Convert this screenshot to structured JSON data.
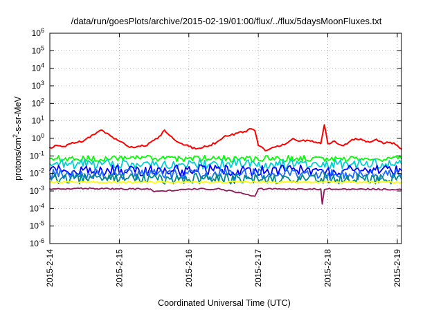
{
  "chart_data": {
    "type": "line",
    "title": "/data/run/goesPlots/archive/2015-02-19/01:00/flux/../flux/5daysMoonFluxes.txt",
    "xlabel": "Coordinated Universal Time (UTC)",
    "ylabel_parts": {
      "base": "protons/cm",
      "sup": "2",
      "rest": "-s-sr-MeV"
    },
    "yscale": "log",
    "ylim_exponents": [
      -6,
      6
    ],
    "yticks": [
      {
        "base": "10",
        "exp": "6"
      },
      {
        "base": "10",
        "exp": "5"
      },
      {
        "base": "10",
        "exp": "4"
      },
      {
        "base": "10",
        "exp": "3"
      },
      {
        "base": "10",
        "exp": "2"
      },
      {
        "base": "10",
        "exp": "1"
      },
      {
        "base": "10",
        "exp": "0"
      },
      {
        "base": "10",
        "exp": "-1"
      },
      {
        "base": "10",
        "exp": "-2"
      },
      {
        "base": "10",
        "exp": "-3"
      },
      {
        "base": "10",
        "exp": "-4"
      },
      {
        "base": "10",
        "exp": "-5"
      },
      {
        "base": "10",
        "exp": "-6"
      }
    ],
    "xlim_days": [
      0,
      5.06
    ],
    "xticks": [
      "2015-2-14",
      "2015-2-15",
      "2015-2-16",
      "2015-2-17",
      "2015-2-18",
      "2015-2-19"
    ],
    "grid": true,
    "series": [
      {
        "color": "#ff0000",
        "x": [
          0,
          0.1,
          0.2,
          0.3,
          0.4,
          0.5,
          0.6,
          0.7,
          0.75,
          0.8,
          0.9,
          1.0,
          1.1,
          1.2,
          1.3,
          1.4,
          1.5,
          1.6,
          1.65,
          1.7,
          1.8,
          1.9,
          2.0,
          2.1,
          2.2,
          2.3,
          2.4,
          2.5,
          2.6,
          2.7,
          2.8,
          2.9,
          2.95,
          3.0,
          3.1,
          3.2,
          3.3,
          3.4,
          3.5,
          3.6,
          3.7,
          3.8,
          3.9,
          3.95,
          4.0,
          4.1,
          4.2,
          4.3,
          4.4,
          4.5,
          4.6,
          4.7,
          4.8,
          4.9,
          5.0,
          5.06
        ],
        "y": [
          0.3,
          0.4,
          0.35,
          0.5,
          0.6,
          0.8,
          1.5,
          2.5,
          3.0,
          2.0,
          1.2,
          0.7,
          0.4,
          0.3,
          0.35,
          0.4,
          0.8,
          1.5,
          3.0,
          1.8,
          0.8,
          0.5,
          0.35,
          0.25,
          0.3,
          0.4,
          0.6,
          1.2,
          1.5,
          2.0,
          2.5,
          3.5,
          2.8,
          0.4,
          0.2,
          0.3,
          0.35,
          0.5,
          1.0,
          0.7,
          0.8,
          0.6,
          0.5,
          6.0,
          0.5,
          0.7,
          0.4,
          0.6,
          1.0,
          0.8,
          0.6,
          0.9,
          0.5,
          0.6,
          0.4,
          0.25
        ]
      },
      {
        "color": "#00ff00",
        "x": [
          0,
          5.06
        ],
        "y": [
          0.07,
          0.07
        ]
      },
      {
        "color": "#00cfcf",
        "x": [
          0,
          5.06
        ],
        "y": [
          0.035,
          0.035
        ]
      },
      {
        "color": "#0000ff",
        "x": [
          0,
          5.06
        ],
        "y": [
          0.015,
          0.015
        ]
      },
      {
        "color": "#1a6bff",
        "x": [
          0,
          5.06
        ],
        "y": [
          0.009,
          0.009
        ]
      },
      {
        "color": "#008b8b",
        "x": [
          0,
          5.06
        ],
        "y": [
          0.005,
          0.005
        ]
      },
      {
        "color": "#ffff00",
        "x": [
          0,
          5.06
        ],
        "y": [
          0.0032,
          0.0032
        ]
      },
      {
        "color": "#8b1a5a",
        "x": [
          0,
          0.5,
          1.0,
          1.45,
          1.5,
          2.0,
          2.45,
          2.5,
          2.95,
          3.0,
          3.5,
          3.9,
          3.92,
          3.95,
          4.0,
          4.5,
          5.06
        ],
        "y": [
          0.0013,
          0.0014,
          0.0013,
          0.0013,
          0.0009,
          0.0013,
          0.0013,
          0.0012,
          0.0005,
          0.0013,
          0.0013,
          0.0013,
          0.00018,
          0.0012,
          0.0013,
          0.0013,
          0.0012
        ]
      }
    ]
  }
}
